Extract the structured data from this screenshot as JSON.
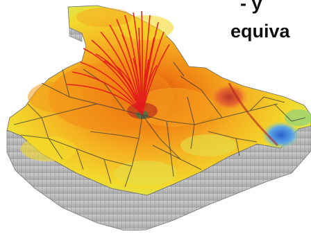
{
  "caption": {
    "line1": "- y",
    "line2": "equiva"
  },
  "colors": {
    "wall": "#bfbfbf",
    "surface_hot": "#e8590c",
    "surface_warm": "#f6a61f",
    "surface_mild": "#f3d82a",
    "surface_cool": "#c4e46a",
    "valley": "#2e6bd6",
    "rays": "#e3171b",
    "roads": "#3b3b3b"
  }
}
